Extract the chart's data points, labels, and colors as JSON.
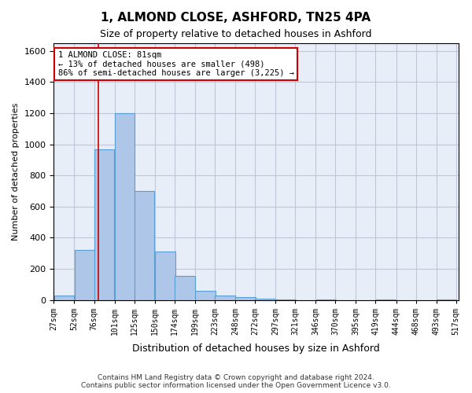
{
  "title_line1": "1, ALMOND CLOSE, ASHFORD, TN25 4PA",
  "title_line2": "Size of property relative to detached houses in Ashford",
  "xlabel": "Distribution of detached houses by size in Ashford",
  "ylabel": "Number of detached properties",
  "bin_labels": [
    "27sqm",
    "52sqm",
    "76sqm",
    "101sqm",
    "125sqm",
    "150sqm",
    "174sqm",
    "199sqm",
    "223sqm",
    "248sqm",
    "272sqm",
    "297sqm",
    "321sqm",
    "346sqm",
    "370sqm",
    "395sqm",
    "419sqm",
    "444sqm",
    "468sqm",
    "493sqm",
    "517sqm"
  ],
  "bar_values": [
    30,
    320,
    970,
    1200,
    700,
    310,
    155,
    60,
    30,
    20,
    10,
    5,
    0,
    5,
    0,
    0,
    5,
    0,
    0,
    5
  ],
  "bar_color": "#aec6e8",
  "bar_edge_color": "#5a9fd4",
  "bar_edge_width": 0.8,
  "grid_color": "#c0c8d8",
  "background_color": "#e8eef8",
  "annotation_box_text": "1 ALMOND CLOSE: 81sqm\n← 13% of detached houses are smaller (498)\n86% of semi-detached houses are larger (3,225) →",
  "annotation_box_color": "#ffffff",
  "annotation_box_edge_color": "#cc0000",
  "vline_x": 81,
  "vline_color": "#cc0000",
  "ylim": [
    0,
    1650
  ],
  "yticks": [
    0,
    200,
    400,
    600,
    800,
    1000,
    1200,
    1400,
    1600
  ],
  "footnote": "Contains HM Land Registry data © Crown copyright and database right 2024.\nContains public sector information licensed under the Open Government Licence v3.0.",
  "bin_width": 25
}
